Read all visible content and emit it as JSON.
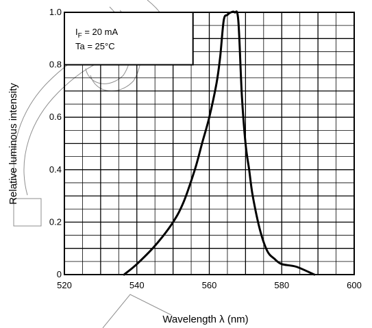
{
  "chart_data": {
    "type": "line",
    "title": "",
    "xlabel": "Wavelength   λ   (nm)",
    "ylabel": "Relative luminous intensity",
    "xlim": [
      520,
      600
    ],
    "ylim": [
      0,
      1.0
    ],
    "x_ticks": [
      "520",
      "540",
      "560",
      "580",
      "600"
    ],
    "y_ticks": [
      "0",
      "0.2",
      "0.4",
      "0.6",
      "0.8",
      "1.0"
    ],
    "grid": true,
    "legend_position": "top-left",
    "conditions": {
      "line1_main": "I",
      "line1_sub": "F",
      "line1_rest": " = 20 mA",
      "line2": "Ta = 25°C"
    },
    "series": [
      {
        "x": [
          536.5,
          540,
          545,
          550,
          553,
          556,
          558,
          560,
          562,
          563,
          564,
          565,
          566,
          567,
          568,
          569,
          570,
          571,
          572,
          574,
          576,
          578,
          580,
          584,
          589
        ],
        "y": [
          0.0,
          0.04,
          0.11,
          0.2,
          0.28,
          0.4,
          0.5,
          0.6,
          0.73,
          0.83,
          0.97,
          0.99,
          1.0,
          1.0,
          0.97,
          0.68,
          0.5,
          0.4,
          0.3,
          0.17,
          0.09,
          0.06,
          0.04,
          0.03,
          0.0
        ]
      }
    ]
  }
}
